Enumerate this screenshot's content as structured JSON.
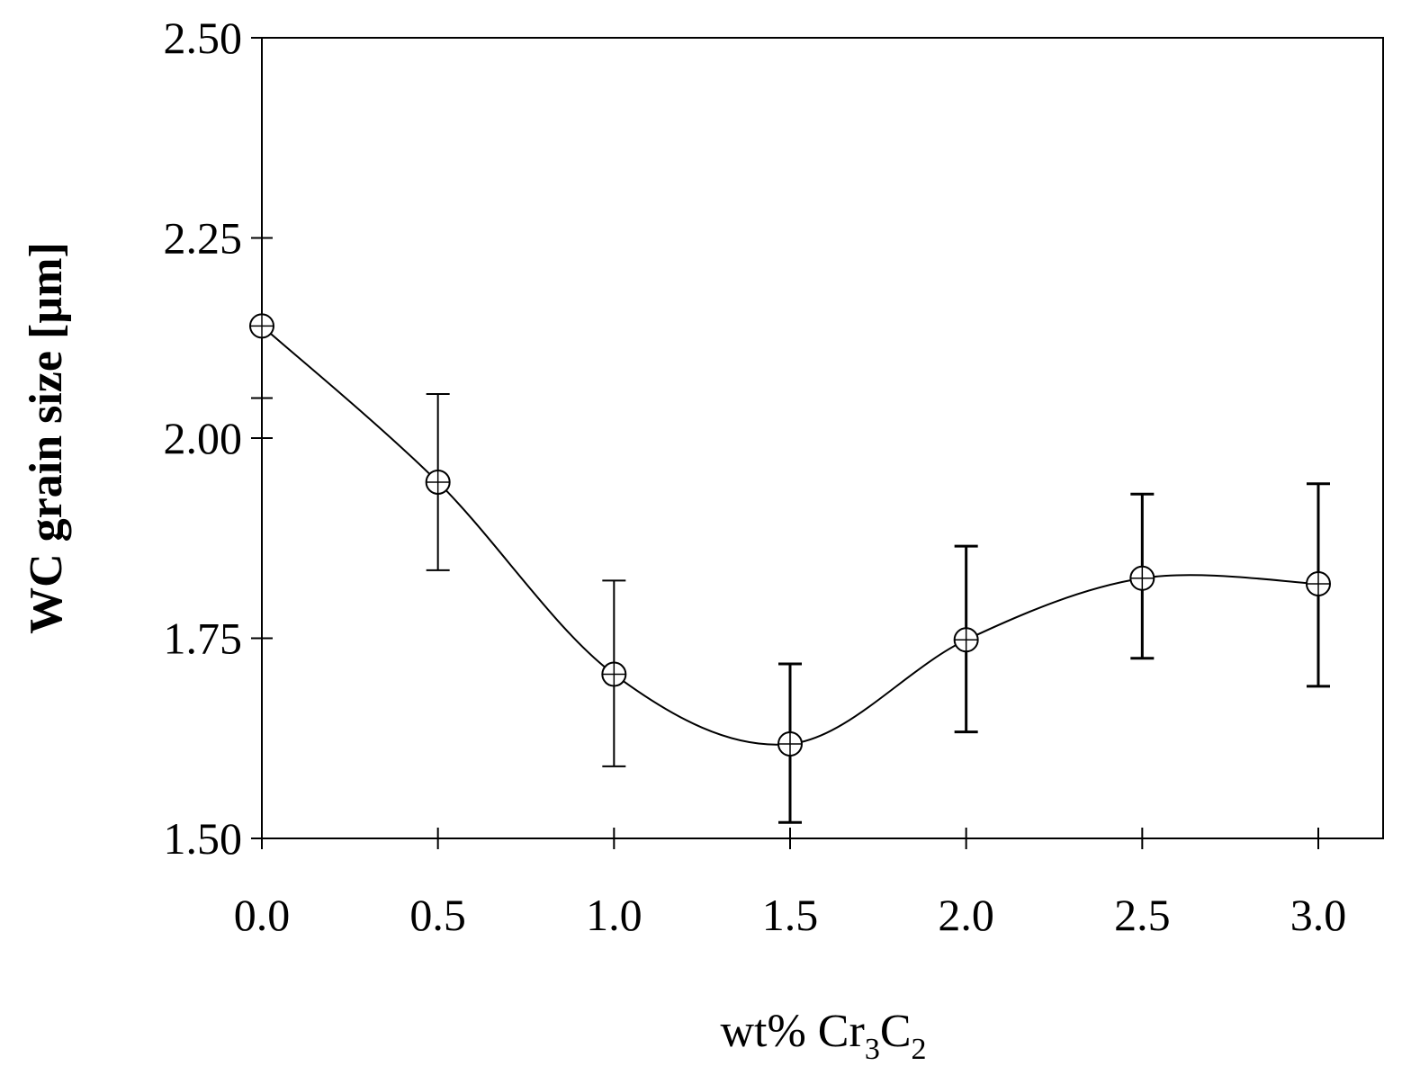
{
  "chart_data": {
    "type": "scatter",
    "title": "",
    "xlabel_parts": [
      {
        "text": "wt%  Cr",
        "sub": false
      },
      {
        "text": "3",
        "sub": true
      },
      {
        "text": "C",
        "sub": false
      },
      {
        "text": "2",
        "sub": true
      }
    ],
    "ylabel": "WC grain size [µm]",
    "xlim": [
      0,
      3.2
    ],
    "ylim": [
      1.5,
      2.5
    ],
    "x_ticks": [
      0.0,
      0.5,
      1.0,
      1.5,
      2.0,
      2.5,
      3.0
    ],
    "x_tick_labels": [
      "0.0",
      "0.5",
      "1.0",
      "1.5",
      "2.0",
      "2.5",
      "3.0"
    ],
    "y_ticks": [
      1.5,
      1.75,
      2.0,
      2.25,
      2.5
    ],
    "y_tick_labels": [
      "1.50",
      "1.75",
      "2.00",
      "2.25",
      "2.50"
    ],
    "y_minor_ticks": [
      2.05
    ],
    "grid": false,
    "series": [
      {
        "name": "WC grain size",
        "marker": "open-circle-crosshair",
        "line": "smooth",
        "x": [
          0.0,
          0.5,
          1.0,
          1.5,
          2.0,
          2.5,
          3.0
        ],
        "y": [
          2.14,
          1.945,
          1.705,
          1.618,
          1.748,
          1.825,
          1.818
        ],
        "error_low": [
          null,
          1.835,
          1.59,
          1.52,
          1.633,
          1.725,
          1.69
        ],
        "error_high": [
          null,
          2.055,
          1.822,
          1.718,
          1.865,
          1.93,
          1.943
        ]
      }
    ]
  }
}
